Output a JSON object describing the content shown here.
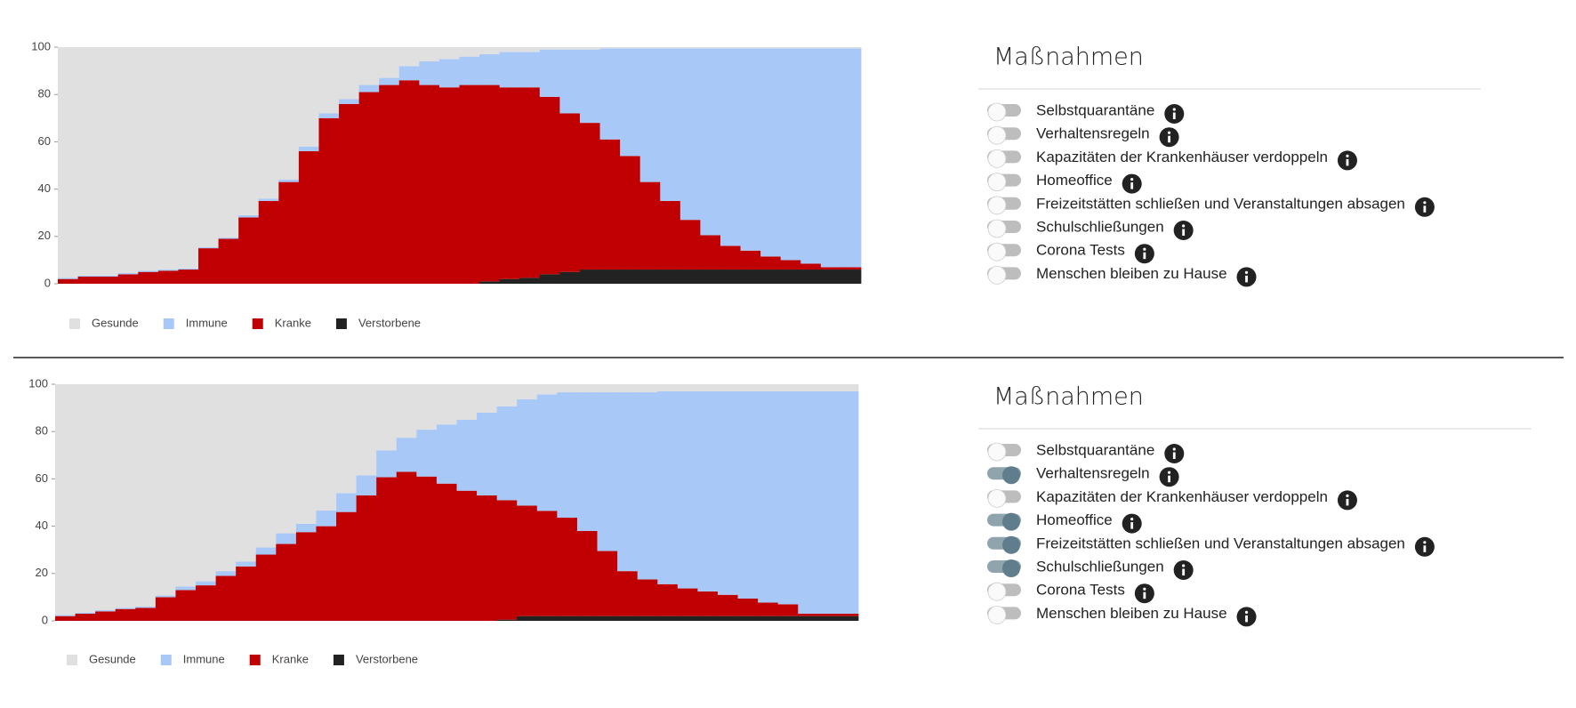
{
  "chart_data": [
    {
      "type": "bar",
      "stacked": true,
      "categories": [
        null,
        null,
        null,
        null,
        null,
        null,
        null,
        null,
        null,
        null,
        null,
        null,
        null,
        null,
        null,
        null,
        null,
        null,
        null,
        null,
        null,
        null,
        null,
        null,
        null,
        null,
        null,
        null,
        null,
        null,
        null,
        null,
        null,
        null,
        null,
        null,
        null,
        null,
        null,
        null
      ],
      "ylim": [
        0,
        100
      ],
      "yticks": [
        0,
        20,
        40,
        60,
        80,
        100
      ],
      "series": [
        {
          "name": "Gesunde",
          "color": "#e0e0e0",
          "values": [
            97.5,
            96.5,
            96.5,
            95.5,
            94.5,
            94,
            93.5,
            84.5,
            80.5,
            71,
            64,
            56,
            42,
            28,
            22,
            16,
            13,
            8,
            6,
            5,
            4,
            3,
            2,
            2,
            1,
            1,
            1,
            0.5,
            0.5,
            0.5,
            0.5,
            0.5,
            0.5,
            0.5,
            0.5,
            0.5,
            0.5,
            0.5,
            0.5,
            0.5
          ]
        },
        {
          "name": "Immune",
          "color": "#a8c8f8",
          "values": [
            0.5,
            0.5,
            0.5,
            0.5,
            0.5,
            0.5,
            0.5,
            0.5,
            0.5,
            1,
            1,
            1,
            2,
            2,
            2,
            3,
            3,
            6,
            10,
            12,
            12,
            13,
            15,
            15,
            20,
            27,
            31,
            38.5,
            45.5,
            56.5,
            64.5,
            72.5,
            79,
            83.5,
            85.5,
            88,
            89.5,
            91,
            92.5,
            92.5
          ]
        },
        {
          "name": "Kranke",
          "color": "#c00000",
          "values": [
            2,
            3,
            3,
            4,
            5,
            5.5,
            6,
            15,
            19,
            28,
            35,
            43,
            56,
            70,
            76,
            81,
            84,
            86,
            84,
            83,
            84,
            83,
            81,
            80.5,
            75,
            67,
            62,
            55,
            48,
            37,
            29,
            21,
            14.5,
            10,
            8,
            5.5,
            4,
            2.5,
            1,
            1
          ]
        },
        {
          "name": "Verstorbene",
          "color": "#222222",
          "values": [
            0,
            0,
            0,
            0,
            0,
            0,
            0,
            0,
            0,
            0,
            0,
            0,
            0,
            0,
            0,
            0,
            0,
            0,
            0,
            0,
            0,
            1,
            2,
            2.5,
            4,
            5,
            6,
            6,
            6,
            6,
            6,
            6,
            6,
            6,
            6,
            6,
            6,
            6,
            6,
            6
          ]
        }
      ]
    },
    {
      "type": "bar",
      "stacked": true,
      "categories": [
        null,
        null,
        null,
        null,
        null,
        null,
        null,
        null,
        null,
        null,
        null,
        null,
        null,
        null,
        null,
        null,
        null,
        null,
        null,
        null,
        null,
        null,
        null,
        null,
        null,
        null,
        null,
        null,
        null,
        null,
        null,
        null,
        null,
        null,
        null,
        null,
        null,
        null,
        null,
        null
      ],
      "ylim": [
        0,
        100
      ],
      "yticks": [
        0,
        20,
        40,
        60,
        80,
        100
      ],
      "series": [
        {
          "name": "Gesunde",
          "color": "#e0e0e0",
          "values": [
            97.5,
            96.5,
            95.5,
            94.5,
            94,
            89.3,
            85.5,
            83.3,
            79,
            75,
            69,
            63,
            59,
            53.4,
            46,
            38.5,
            28,
            22.6,
            19.2,
            17,
            15,
            12,
            9.4,
            6.4,
            4.3,
            3.4,
            3.4,
            3.4,
            3.4,
            3.4,
            3,
            3,
            3,
            3,
            3,
            3,
            3,
            3,
            3,
            3
          ]
        },
        {
          "name": "Immune",
          "color": "#a8c8f8",
          "values": [
            0.5,
            0.5,
            0.5,
            0.5,
            0.5,
            0.7,
            1.5,
            1.7,
            2,
            2,
            3,
            4.5,
            3.5,
            6.6,
            8,
            8.5,
            11.3,
            14.4,
            19.8,
            25,
            30,
            35,
            39.6,
            44.9,
            49.2,
            53,
            58.6,
            67.1,
            75.6,
            79.1,
            81.5,
            83.3,
            84.6,
            86,
            87.6,
            89.3,
            90,
            94,
            94,
            94
          ]
        },
        {
          "name": "Kranke",
          "color": "#c00000",
          "values": [
            2,
            3,
            4,
            5,
            5.5,
            10,
            13,
            15,
            19,
            23,
            28,
            32.5,
            37.5,
            40,
            46,
            53,
            60.7,
            63,
            61,
            58,
            55,
            53,
            50.5,
            46.7,
            44.5,
            41.6,
            36,
            27.5,
            19,
            15.5,
            13.5,
            11.7,
            10.4,
            9,
            7.4,
            5.7,
            5,
            1,
            1,
            1
          ]
        },
        {
          "name": "Verstorbene",
          "color": "#222222",
          "values": [
            0,
            0,
            0,
            0,
            0,
            0,
            0,
            0,
            0,
            0,
            0,
            0,
            0,
            0,
            0,
            0,
            0,
            0,
            0,
            0,
            0,
            0,
            0.5,
            2,
            2,
            2,
            2,
            2,
            2,
            2,
            2,
            2,
            2,
            2,
            2,
            2,
            2,
            2,
            2,
            2
          ]
        }
      ]
    }
  ],
  "panels": [
    {
      "title": "Maßnahmen",
      "measures": [
        {
          "label": "Selbstquarantäne",
          "on": false
        },
        {
          "label": "Verhaltensregeln",
          "on": false
        },
        {
          "label": "Kapazitäten der Krankenhäuser verdoppeln",
          "on": false
        },
        {
          "label": "Homeoffice",
          "on": false
        },
        {
          "label": "Freizeitstätten schließen und Veranstaltungen absagen",
          "on": false
        },
        {
          "label": "Schulschließungen",
          "on": false
        },
        {
          "label": "Corona Tests",
          "on": false
        },
        {
          "label": "Menschen bleiben zu Hause",
          "on": false
        }
      ]
    },
    {
      "title": "Maßnahmen",
      "measures": [
        {
          "label": "Selbstquarantäne",
          "on": false
        },
        {
          "label": "Verhaltensregeln",
          "on": true
        },
        {
          "label": "Kapazitäten der Krankenhäuser verdoppeln",
          "on": false
        },
        {
          "label": "Homeoffice",
          "on": true
        },
        {
          "label": "Freizeitstätten schließen und Veranstaltungen absagen",
          "on": true
        },
        {
          "label": "Schulschließungen",
          "on": true
        },
        {
          "label": "Corona Tests",
          "on": false
        },
        {
          "label": "Menschen bleiben zu Hause",
          "on": false
        }
      ]
    }
  ]
}
